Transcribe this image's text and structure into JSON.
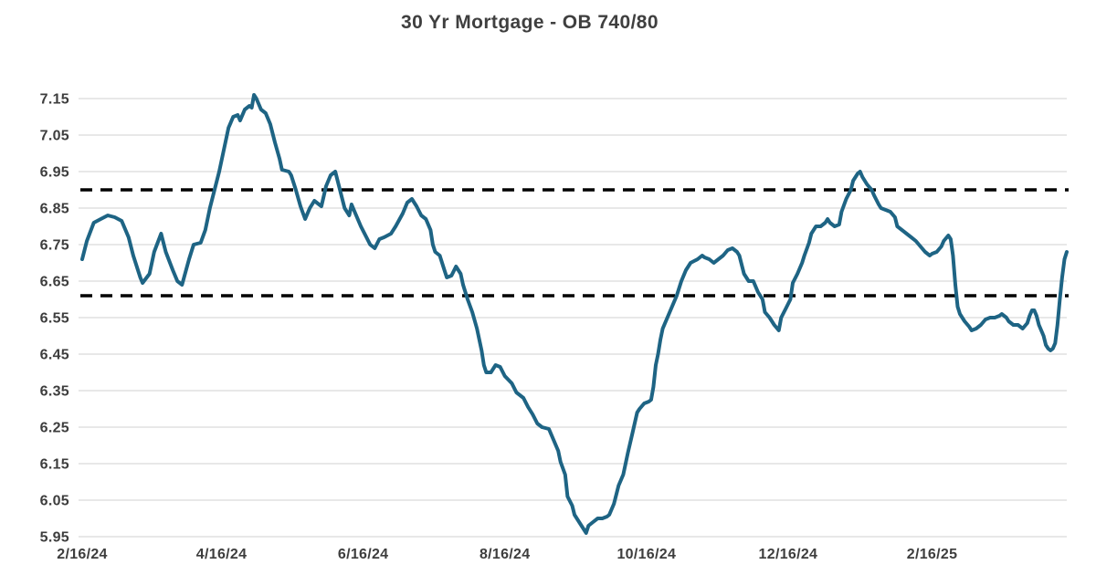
{
  "title": "30 Yr Mortgage - OB 740/80",
  "colors": {
    "background": "#ffffff",
    "line": "#1e6484",
    "reference_line": "#000000",
    "grid": "#d9d9d9",
    "tick_text": "#3d3d3d",
    "title_text": "#3f3f3f"
  },
  "chart_data": {
    "type": "line",
    "title": "30 Yr Mortgage - OB 740/80",
    "xlabel": "",
    "ylabel": "",
    "legend": "none",
    "grid": "horizontal-only",
    "x_unit": "days since 2/16/2024",
    "x_range": [
      0,
      424
    ],
    "x_tick_days": [
      0,
      60,
      121,
      182,
      243,
      304,
      366
    ],
    "x_tick_labels": [
      "2/16/24",
      "4/16/24",
      "6/16/24",
      "8/16/24",
      "10/16/24",
      "12/16/24",
      "2/16/25"
    ],
    "ylim": [
      5.95,
      7.15
    ],
    "y_tick_step": 0.1,
    "y_tick_labels": [
      "7.15",
      "7.05",
      "6.95",
      "6.85",
      "6.75",
      "6.65",
      "6.55",
      "6.45",
      "6.35",
      "6.25",
      "6.15",
      "6.05",
      "5.95"
    ],
    "reference_lines": [
      {
        "name": "upper-band",
        "value": 6.9,
        "style": "dashed",
        "color": "#000000"
      },
      {
        "name": "lower-band",
        "value": 6.61,
        "style": "dashed",
        "color": "#000000"
      }
    ],
    "series": [
      {
        "name": "30 Yr Mortgage OB 740/80",
        "color": "#1e6484",
        "points": [
          [
            0,
            6.71
          ],
          [
            2,
            6.76
          ],
          [
            5,
            6.81
          ],
          [
            8,
            6.82
          ],
          [
            11,
            6.83
          ],
          [
            14,
            6.825
          ],
          [
            17,
            6.815
          ],
          [
            20,
            6.77
          ],
          [
            22,
            6.72
          ],
          [
            25,
            6.66
          ],
          [
            26,
            6.645
          ],
          [
            29,
            6.67
          ],
          [
            31,
            6.73
          ],
          [
            34,
            6.78
          ],
          [
            36,
            6.73
          ],
          [
            39,
            6.68
          ],
          [
            41,
            6.65
          ],
          [
            43,
            6.64
          ],
          [
            46,
            6.71
          ],
          [
            48,
            6.75
          ],
          [
            51,
            6.755
          ],
          [
            53,
            6.79
          ],
          [
            55,
            6.85
          ],
          [
            57,
            6.9
          ],
          [
            59,
            6.95
          ],
          [
            61,
            7.01
          ],
          [
            63,
            7.07
          ],
          [
            65,
            7.1
          ],
          [
            67,
            7.105
          ],
          [
            68,
            7.09
          ],
          [
            70,
            7.12
          ],
          [
            72,
            7.13
          ],
          [
            73,
            7.125
          ],
          [
            74,
            7.16
          ],
          [
            75,
            7.15
          ],
          [
            77,
            7.12
          ],
          [
            79,
            7.11
          ],
          [
            81,
            7.08
          ],
          [
            83,
            7.03
          ],
          [
            85,
            6.985
          ],
          [
            86,
            6.955
          ],
          [
            89,
            6.95
          ],
          [
            90,
            6.94
          ],
          [
            92,
            6.9
          ],
          [
            94,
            6.855
          ],
          [
            96,
            6.82
          ],
          [
            98,
            6.85
          ],
          [
            100,
            6.87
          ],
          [
            102,
            6.86
          ],
          [
            103,
            6.855
          ],
          [
            105,
            6.91
          ],
          [
            107,
            6.94
          ],
          [
            109,
            6.95
          ],
          [
            111,
            6.9
          ],
          [
            113,
            6.85
          ],
          [
            115,
            6.83
          ],
          [
            116,
            6.86
          ],
          [
            118,
            6.83
          ],
          [
            120,
            6.8
          ],
          [
            122,
            6.775
          ],
          [
            124,
            6.75
          ],
          [
            126,
            6.74
          ],
          [
            128,
            6.765
          ],
          [
            130,
            6.77
          ],
          [
            133,
            6.78
          ],
          [
            135,
            6.8
          ],
          [
            138,
            6.835
          ],
          [
            140,
            6.865
          ],
          [
            142,
            6.875
          ],
          [
            144,
            6.855
          ],
          [
            146,
            6.83
          ],
          [
            148,
            6.82
          ],
          [
            150,
            6.79
          ],
          [
            151,
            6.75
          ],
          [
            152,
            6.73
          ],
          [
            154,
            6.72
          ],
          [
            156,
            6.68
          ],
          [
            157,
            6.66
          ],
          [
            159,
            6.665
          ],
          [
            161,
            6.69
          ],
          [
            163,
            6.67
          ],
          [
            164,
            6.64
          ],
          [
            166,
            6.6
          ],
          [
            168,
            6.565
          ],
          [
            170,
            6.52
          ],
          [
            172,
            6.46
          ],
          [
            173,
            6.42
          ],
          [
            174,
            6.4
          ],
          [
            176,
            6.4
          ],
          [
            178,
            6.42
          ],
          [
            180,
            6.415
          ],
          [
            182,
            6.39
          ],
          [
            185,
            6.37
          ],
          [
            187,
            6.345
          ],
          [
            190,
            6.33
          ],
          [
            192,
            6.305
          ],
          [
            194,
            6.285
          ],
          [
            196,
            6.26
          ],
          [
            198,
            6.25
          ],
          [
            201,
            6.245
          ],
          [
            203,
            6.215
          ],
          [
            205,
            6.185
          ],
          [
            206,
            6.155
          ],
          [
            208,
            6.12
          ],
          [
            209,
            6.06
          ],
          [
            211,
            6.035
          ],
          [
            212,
            6.01
          ],
          [
            214,
            5.99
          ],
          [
            216,
            5.97
          ],
          [
            217,
            5.96
          ],
          [
            218,
            5.98
          ],
          [
            220,
            5.99
          ],
          [
            222,
            6.0
          ],
          [
            224,
            6.0
          ],
          [
            226,
            6.005
          ],
          [
            227,
            6.01
          ],
          [
            229,
            6.04
          ],
          [
            231,
            6.09
          ],
          [
            233,
            6.12
          ],
          [
            235,
            6.18
          ],
          [
            237,
            6.235
          ],
          [
            239,
            6.29
          ],
          [
            240,
            6.3
          ],
          [
            242,
            6.315
          ],
          [
            244,
            6.32
          ],
          [
            245,
            6.325
          ],
          [
            246,
            6.36
          ],
          [
            247,
            6.42
          ],
          [
            248,
            6.45
          ],
          [
            249,
            6.49
          ],
          [
            250,
            6.52
          ],
          [
            252,
            6.55
          ],
          [
            254,
            6.58
          ],
          [
            256,
            6.61
          ],
          [
            258,
            6.65
          ],
          [
            260,
            6.68
          ],
          [
            262,
            6.7
          ],
          [
            265,
            6.71
          ],
          [
            267,
            6.72
          ],
          [
            268,
            6.715
          ],
          [
            270,
            6.71
          ],
          [
            272,
            6.7
          ],
          [
            274,
            6.71
          ],
          [
            276,
            6.72
          ],
          [
            278,
            6.735
          ],
          [
            280,
            6.74
          ],
          [
            282,
            6.73
          ],
          [
            283,
            6.72
          ],
          [
            285,
            6.67
          ],
          [
            287,
            6.65
          ],
          [
            289,
            6.65
          ],
          [
            291,
            6.62
          ],
          [
            293,
            6.6
          ],
          [
            294,
            6.565
          ],
          [
            296,
            6.55
          ],
          [
            298,
            6.53
          ],
          [
            300,
            6.515
          ],
          [
            301,
            6.55
          ],
          [
            303,
            6.575
          ],
          [
            305,
            6.6
          ],
          [
            306,
            6.645
          ],
          [
            308,
            6.67
          ],
          [
            310,
            6.7
          ],
          [
            311,
            6.72
          ],
          [
            313,
            6.755
          ],
          [
            314,
            6.78
          ],
          [
            316,
            6.8
          ],
          [
            318,
            6.8
          ],
          [
            320,
            6.81
          ],
          [
            321,
            6.82
          ],
          [
            322,
            6.81
          ],
          [
            324,
            6.8
          ],
          [
            326,
            6.805
          ],
          [
            327,
            6.84
          ],
          [
            329,
            6.875
          ],
          [
            331,
            6.9
          ],
          [
            332,
            6.925
          ],
          [
            334,
            6.945
          ],
          [
            335,
            6.95
          ],
          [
            336,
            6.935
          ],
          [
            338,
            6.915
          ],
          [
            340,
            6.9
          ],
          [
            341,
            6.885
          ],
          [
            343,
            6.86
          ],
          [
            344,
            6.85
          ],
          [
            346,
            6.845
          ],
          [
            348,
            6.84
          ],
          [
            350,
            6.825
          ],
          [
            351,
            6.8
          ],
          [
            353,
            6.79
          ],
          [
            355,
            6.78
          ],
          [
            357,
            6.77
          ],
          [
            359,
            6.76
          ],
          [
            361,
            6.745
          ],
          [
            363,
            6.73
          ],
          [
            365,
            6.72
          ],
          [
            366,
            6.725
          ],
          [
            368,
            6.73
          ],
          [
            370,
            6.745
          ],
          [
            371,
            6.76
          ],
          [
            373,
            6.775
          ],
          [
            374,
            6.765
          ],
          [
            375,
            6.72
          ],
          [
            376,
            6.64
          ],
          [
            377,
            6.58
          ],
          [
            378,
            6.56
          ],
          [
            380,
            6.54
          ],
          [
            382,
            6.525
          ],
          [
            383,
            6.515
          ],
          [
            385,
            6.52
          ],
          [
            387,
            6.53
          ],
          [
            389,
            6.545
          ],
          [
            391,
            6.55
          ],
          [
            393,
            6.55
          ],
          [
            395,
            6.555
          ],
          [
            396,
            6.56
          ],
          [
            398,
            6.55
          ],
          [
            399,
            6.54
          ],
          [
            401,
            6.53
          ],
          [
            403,
            6.53
          ],
          [
            405,
            6.52
          ],
          [
            407,
            6.535
          ],
          [
            408,
            6.555
          ],
          [
            409,
            6.57
          ],
          [
            410,
            6.57
          ],
          [
            411,
            6.555
          ],
          [
            412,
            6.53
          ],
          [
            414,
            6.5
          ],
          [
            415,
            6.475
          ],
          [
            416,
            6.465
          ],
          [
            417,
            6.46
          ],
          [
            418,
            6.465
          ],
          [
            419,
            6.48
          ],
          [
            420,
            6.53
          ],
          [
            421,
            6.6
          ],
          [
            422,
            6.66
          ],
          [
            423,
            6.71
          ],
          [
            424,
            6.73
          ]
        ]
      }
    ]
  }
}
